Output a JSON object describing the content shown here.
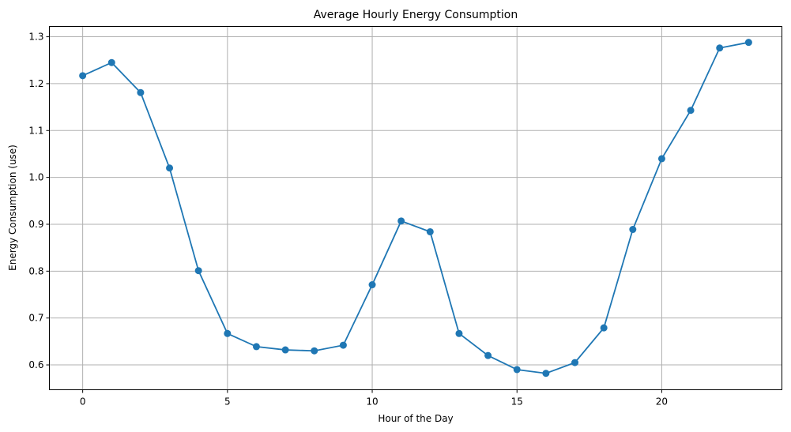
{
  "chart_data": {
    "type": "line",
    "title": "Average Hourly Energy Consumption",
    "xlabel": "Hour of the Day",
    "ylabel": "Energy Consumption (use)",
    "xlim": [
      -1.15,
      24.15
    ],
    "ylim": [
      0.547,
      1.322
    ],
    "xticks": [
      0,
      5,
      10,
      15,
      20
    ],
    "xtick_labels": [
      "0",
      "5",
      "10",
      "15",
      "20"
    ],
    "yticks": [
      0.6,
      0.7,
      0.8,
      0.9,
      1.0,
      1.1,
      1.2,
      1.3
    ],
    "ytick_labels": [
      "0.6",
      "0.7",
      "0.8",
      "0.9",
      "1.0",
      "1.1",
      "1.2",
      "1.3"
    ],
    "grid": true,
    "color": "#1f77b4",
    "marker": "circle",
    "x": [
      0,
      1,
      2,
      3,
      4,
      5,
      6,
      7,
      8,
      9,
      10,
      11,
      12,
      13,
      14,
      15,
      16,
      17,
      18,
      19,
      20,
      21,
      22,
      23
    ],
    "values": [
      1.217,
      1.245,
      1.181,
      1.02,
      0.801,
      0.667,
      0.639,
      0.632,
      0.63,
      0.642,
      0.771,
      0.907,
      0.884,
      0.667,
      0.62,
      0.59,
      0.582,
      0.605,
      0.679,
      0.889,
      1.04,
      1.143,
      1.276,
      1.288
    ]
  }
}
